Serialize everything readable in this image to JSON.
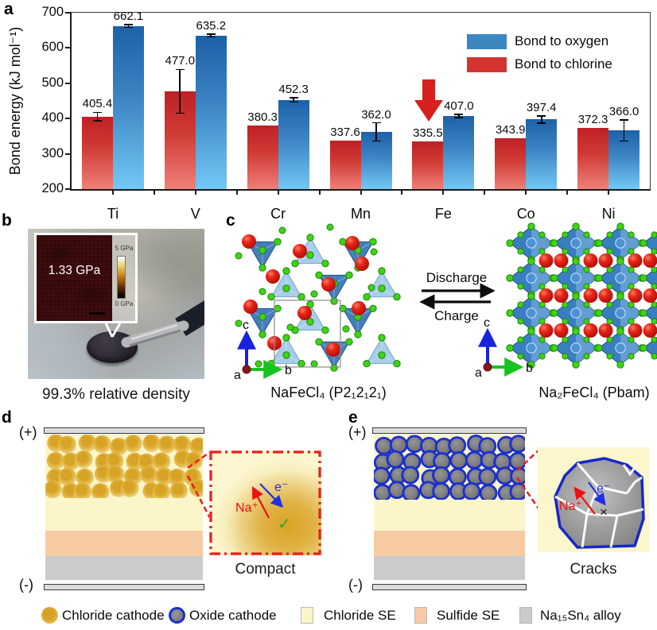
{
  "colors": {
    "oxygen_blue": "#3c87c0",
    "chlorine_red": "#d43430",
    "bar_blue_top": "#1d61a7",
    "bar_blue_bottom": "#72c8f5",
    "bar_red_top": "#bf2026",
    "bar_red_bottom": "#ef8078",
    "chloride_se_yellow": "#fbf6ca",
    "sulfide_se_peach": "#f6caa2",
    "alloy_gray": "#cbcbcb",
    "cathode_gold": "#d7a324",
    "oxide_gray": "#7b7b7b",
    "oxide_ring_blue": "#1b2fd0",
    "inset_border_red": "#ee1c1c",
    "na_ion_red": "#ee1111",
    "electron_blue": "#2030e0",
    "check_green": "#2aa23c"
  },
  "panel_a": {
    "label": "a"
  },
  "chart_data": {
    "type": "bar",
    "categories": [
      "Ti",
      "V",
      "Cr",
      "Mn",
      "Fe",
      "Co",
      "Ni"
    ],
    "series": [
      {
        "name": "Bond to chlorine",
        "color": "#d43430",
        "values": [
          405.4,
          477.0,
          380.3,
          337.6,
          335.5,
          343.9,
          372.3
        ],
        "errors": [
          12,
          62,
          0,
          0,
          0,
          0,
          0
        ]
      },
      {
        "name": "Bond to oxygen",
        "color": "#3c87c0",
        "values": [
          662.1,
          635.2,
          452.3,
          362.0,
          407.0,
          397.4,
          366.0
        ],
        "errors": [
          4,
          4,
          6,
          26,
          5,
          10,
          30
        ]
      }
    ],
    "ylabel": "Bond energy (kJ mol⁻¹)",
    "xlabel": "",
    "ylim": [
      200,
      700
    ],
    "yticks": [
      200,
      300,
      400,
      500,
      600,
      700
    ],
    "grid": false,
    "legend_position": "top-right",
    "annotation": "red down-arrow highlighting the Fe bond-to-chlorine bar"
  },
  "panel_b": {
    "label": "b",
    "inset_value": "1.33 GPa",
    "colorbar_top": "5 GPa",
    "colorbar_bottom": "0 GPa",
    "caption": "99.3% relative density"
  },
  "panel_c": {
    "label": "c",
    "discharge": "Discharge",
    "charge": "Charge",
    "left_formula": "NaFeCl₄ (P2₁2₁2₁)",
    "right_formula": "Na₂FeCl₄ (Pbam)",
    "axis_a": "a",
    "axis_b": "b",
    "axis_c": "c"
  },
  "panel_d": {
    "label": "d",
    "positive": "(+)",
    "negative": "(-)",
    "na_ion": "Na⁺",
    "electron": "e⁻",
    "check": "✓",
    "caption": "Compact"
  },
  "panel_e": {
    "label": "e",
    "positive": "(+)",
    "negative": "(-)",
    "na_ion": "Na⁺",
    "electron": "e⁻",
    "cross": "×",
    "caption": "Cracks"
  },
  "legend_row": {
    "items": [
      {
        "icon": "gold-sphere",
        "label": "Chloride cathode"
      },
      {
        "icon": "gray-sphere-blue-ring",
        "label": "Oxide cathode"
      },
      {
        "icon": "pale-yellow-square",
        "label": "Chloride SE"
      },
      {
        "icon": "peach-square",
        "label": "Sulfide SE"
      },
      {
        "icon": "gray-square",
        "label": "Na₁₅Sn₄ alloy"
      }
    ]
  }
}
